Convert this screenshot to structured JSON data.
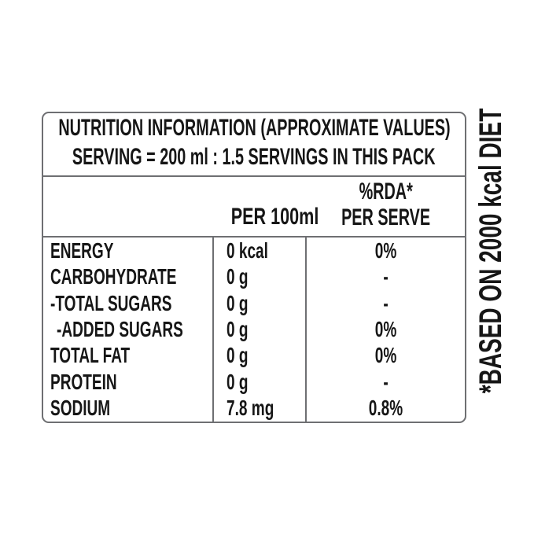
{
  "table": {
    "title": "NUTRITION INFORMATION (APPROXIMATE VALUES)",
    "serving": "SERVING = 200 ml : 1.5 SERVINGS IN THIS PACK",
    "columns": {
      "per_100ml": "PER 100ml",
      "rda_line1": "%RDA*",
      "rda_line2": "PER SERVE"
    },
    "rows": [
      {
        "label": "ENERGY",
        "per_100ml": "0 kcal",
        "rda": "0%"
      },
      {
        "label": "CARBOHYDRATE",
        "per_100ml": "0 g",
        "rda": "-"
      },
      {
        "label": "-TOTAL SUGARS",
        "per_100ml": "0 g",
        "rda": "-"
      },
      {
        "label": "-ADDED SUGARS",
        "per_100ml": "0 g",
        "rda": "0%"
      },
      {
        "label": "TOTAL FAT",
        "per_100ml": "0 g",
        "rda": "0%"
      },
      {
        "label": "PROTEIN",
        "per_100ml": "0 g",
        "rda": "-"
      },
      {
        "label": "SODIUM",
        "per_100ml": "7.8 mg",
        "rda": "0.8%"
      }
    ],
    "footnote": "*BASED ON 2000 kcal DIET"
  },
  "colors": {
    "text": "#161616",
    "rule": "#6e6f72",
    "background": "#ffffff"
  }
}
